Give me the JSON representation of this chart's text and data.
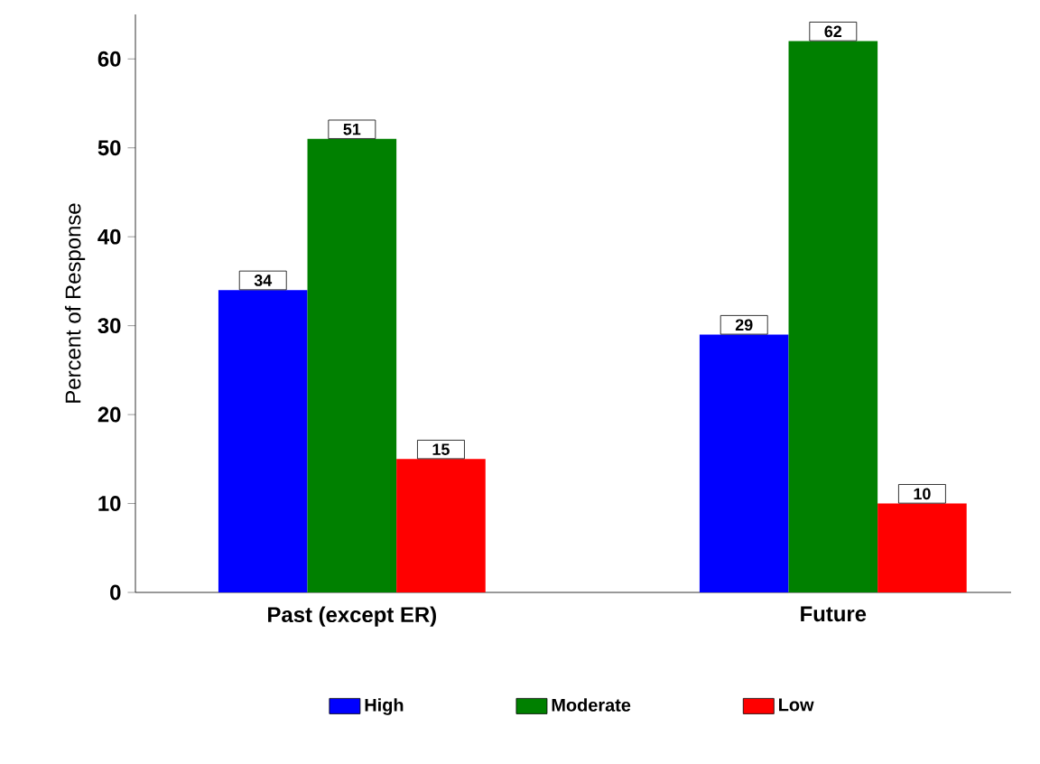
{
  "chart_data": {
    "type": "bar",
    "ylabel": "Percent of Response",
    "categories": [
      "Past (except ER)",
      "Future"
    ],
    "series": [
      {
        "name": "High",
        "color": "#0000ff",
        "values": [
          34,
          29
        ]
      },
      {
        "name": "Moderate",
        "color": "#008000",
        "values": [
          51,
          62
        ]
      },
      {
        "name": "Low",
        "color": "#ff0000",
        "values": [
          15,
          10
        ]
      }
    ],
    "ylim": [
      0,
      65
    ],
    "yticks": [
      0,
      10,
      20,
      30,
      40,
      50,
      60
    ],
    "data_labels": true,
    "legend": "bottom",
    "grid": false
  }
}
